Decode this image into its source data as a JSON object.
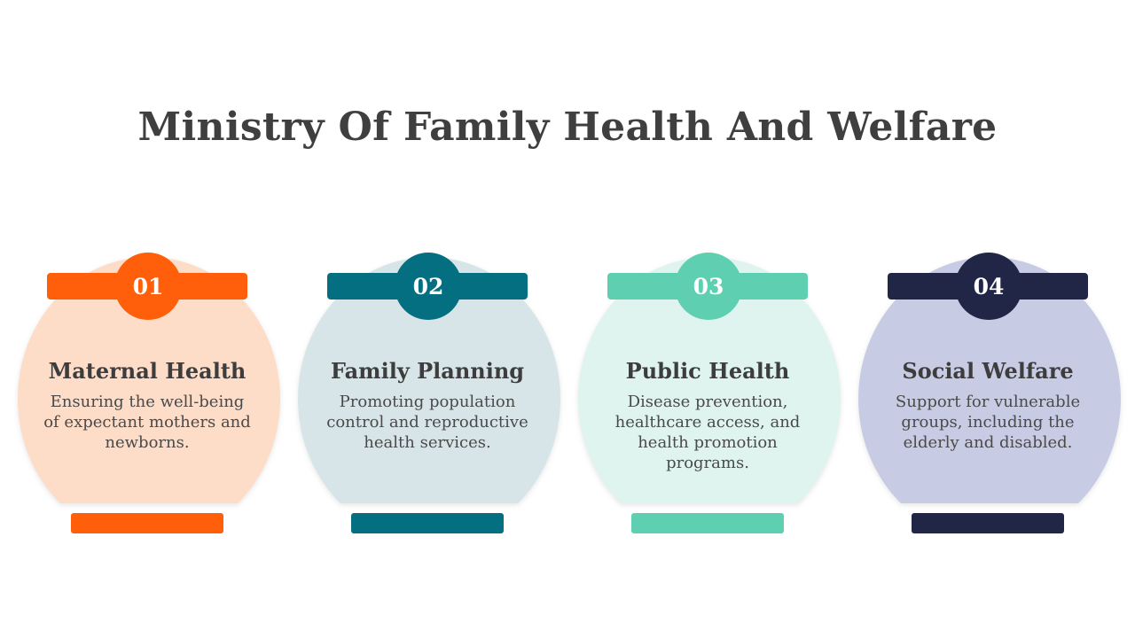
{
  "title": "Ministry Of Family Health And Welfare",
  "cards": [
    {
      "number": "01",
      "heading": "Maternal Health",
      "description": "Ensuring the well-being of expectant mothers and newborns.",
      "accent_color": "#ff5f0a",
      "fill_color": "#fddcc8"
    },
    {
      "number": "02",
      "heading": "Family Planning",
      "description": "Promoting population control and reproductive health services.",
      "accent_color": "#046f80",
      "fill_color": "#d7e5e9"
    },
    {
      "number": "03",
      "heading": "Public Health",
      "description": "Disease prevention, healthcare access, and health promotion programs.",
      "accent_color": "#5ecfb1",
      "fill_color": "#dff4ef"
    },
    {
      "number": "04",
      "heading": "Social Welfare",
      "description": "Support for vulnerable groups, including the elderly and disabled.",
      "accent_color": "#212646",
      "fill_color": "#c8cbe4"
    }
  ]
}
